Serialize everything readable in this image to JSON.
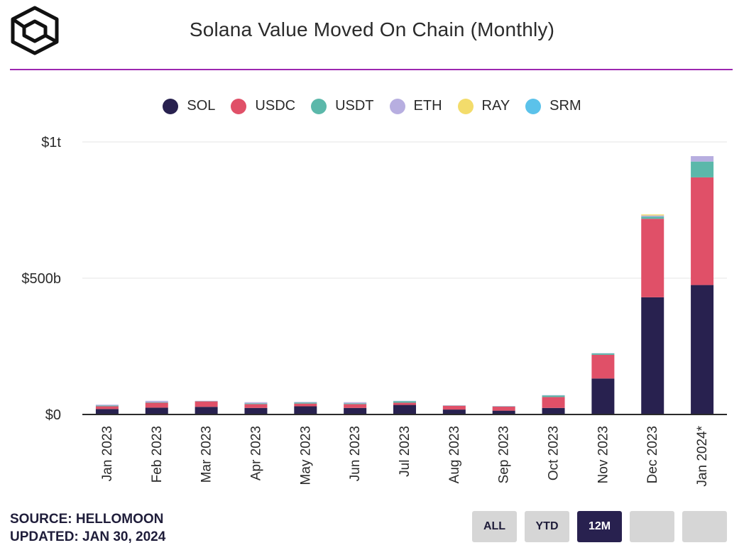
{
  "header": {
    "title": "Solana Value Moved On Chain (Monthly)"
  },
  "footer": {
    "source": "SOURCE: HELLOMOON",
    "updated": "UPDATED: JAN 30, 2024"
  },
  "range_buttons": [
    {
      "label": "ALL",
      "active": false
    },
    {
      "label": "YTD",
      "active": false
    },
    {
      "label": "12M",
      "active": true
    },
    {
      "label": "",
      "active": false
    },
    {
      "label": "",
      "active": false
    }
  ],
  "chart_data": {
    "type": "bar",
    "stacked": true,
    "title": "Solana Value Moved On Chain (Monthly)",
    "categories": [
      "Jan 2023",
      "Feb 2023",
      "Mar 2023",
      "Apr 2023",
      "May 2023",
      "Jun 2023",
      "Jul 2023",
      "Aug 2023",
      "Sep 2023",
      "Oct 2023",
      "Nov 2023",
      "Dec 2023",
      "Jan 2024*"
    ],
    "series": [
      {
        "name": "SOL",
        "color": "#28214f",
        "values": [
          20,
          25,
          28,
          24,
          30,
          24,
          35,
          18,
          14,
          24,
          132,
          430,
          475
        ]
      },
      {
        "name": "USDC",
        "color": "#e05068",
        "values": [
          10,
          18,
          20,
          14,
          10,
          14,
          8,
          14,
          15,
          40,
          87,
          288,
          395
        ]
      },
      {
        "name": "USDT",
        "color": "#5bb8aa",
        "values": [
          3,
          2,
          1,
          3,
          4,
          3,
          6,
          1,
          1,
          6,
          5,
          8,
          58
        ]
      },
      {
        "name": "ETH",
        "color": "#b7aee0",
        "values": [
          3,
          5,
          1,
          4,
          2,
          4,
          1,
          1,
          1,
          1,
          1,
          4,
          20
        ]
      },
      {
        "name": "RAY",
        "color": "#f3dc6b",
        "values": [
          0,
          0,
          0,
          0,
          0,
          0,
          0,
          0,
          0,
          0,
          0,
          4,
          0
        ]
      },
      {
        "name": "SRM",
        "color": "#5bc2ea",
        "values": [
          0,
          0,
          0,
          0,
          0,
          0,
          0,
          0,
          0,
          0,
          0,
          0,
          0
        ]
      }
    ],
    "units": "billions USD",
    "ylim": [
      0,
      1000
    ],
    "yticks": [
      {
        "value": 0,
        "label": "$0"
      },
      {
        "value": 500,
        "label": "$500b"
      },
      {
        "value": 1000,
        "label": "$1t"
      }
    ],
    "grid": true,
    "legend_position": "top-center"
  }
}
